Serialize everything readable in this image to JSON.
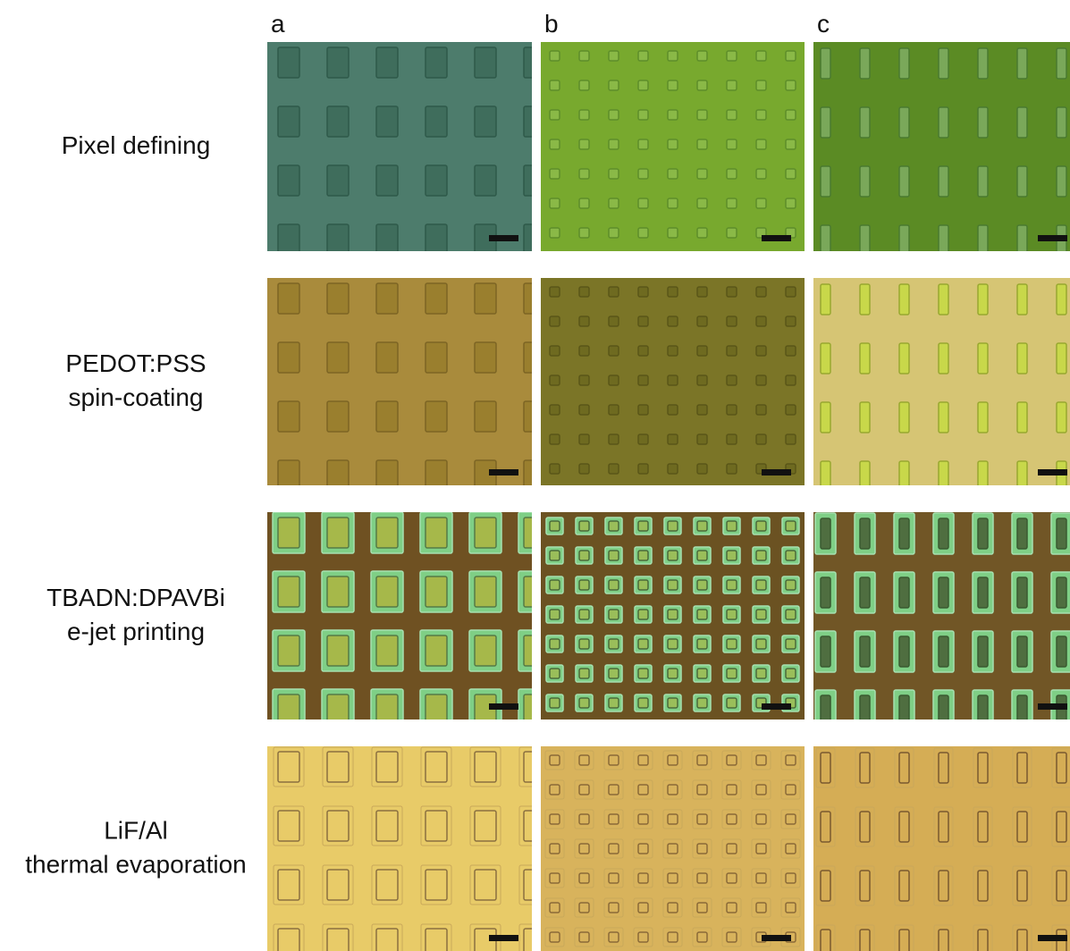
{
  "columns": [
    "a",
    "b",
    "c"
  ],
  "rows": [
    {
      "lines": [
        "Pixel defining"
      ]
    },
    {
      "lines": [
        "PEDOT:PSS",
        "spin-coating"
      ]
    },
    {
      "lines": [
        "TBADN:DPAVBi",
        "e-jet printing"
      ]
    },
    {
      "lines": [
        "LiF/Al",
        "thermal evaporation"
      ]
    }
  ]
}
